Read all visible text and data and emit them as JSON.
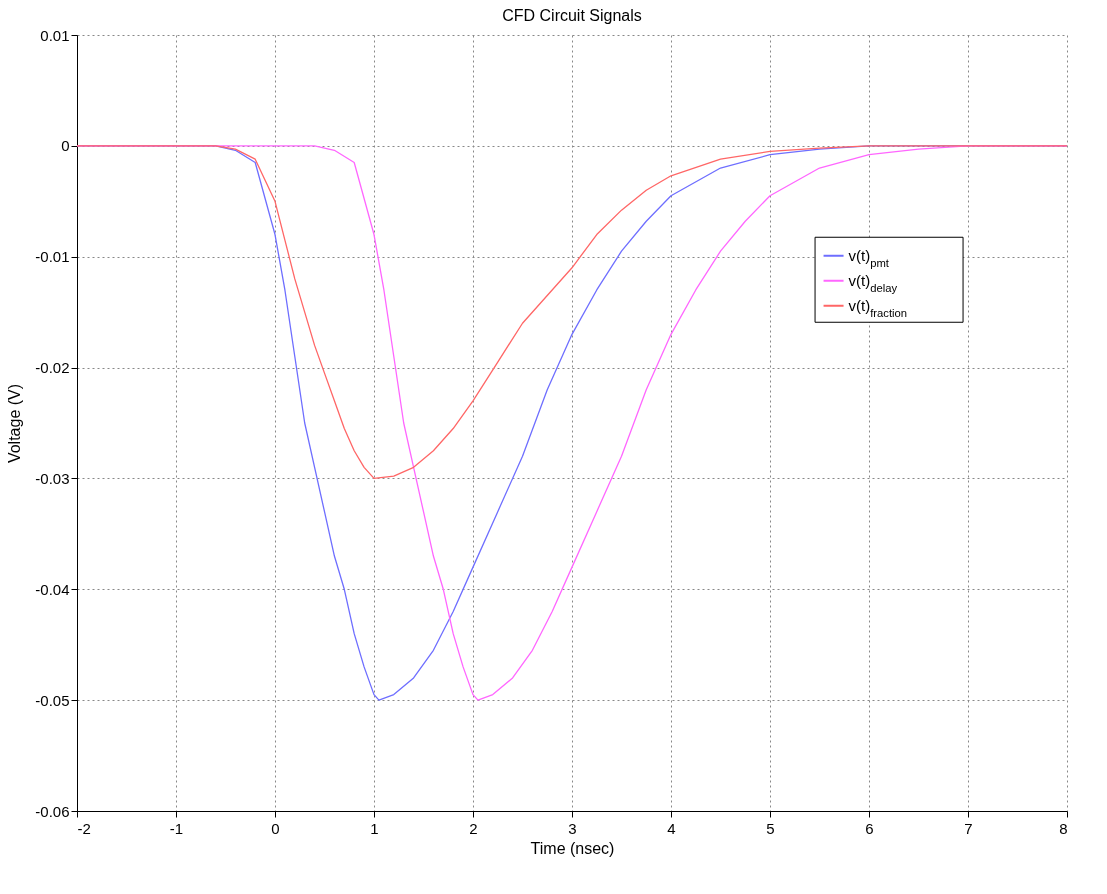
{
  "chart_data": {
    "type": "line",
    "title": "CFD Circuit Signals",
    "xlabel": "Time (nsec)",
    "ylabel": "Voltage (V)",
    "series": [
      {
        "name": "v(t)$_{pmt}$",
        "color": "#6e6eff",
        "x": [
          -2,
          -1,
          -0.6,
          -0.4,
          -0.2,
          0,
          0.1,
          0.2,
          0.3,
          0.4,
          0.5,
          0.6,
          0.7,
          0.8,
          0.9,
          1.0,
          1.05,
          1.2,
          1.4,
          1.6,
          1.8,
          2.0,
          2.25,
          2.5,
          2.75,
          3,
          3.25,
          3.5,
          3.75,
          4,
          4.5,
          5,
          5.5,
          6,
          8
        ],
        "values": [
          0,
          0,
          0,
          -0.0004,
          -0.0015,
          -0.008,
          -0.013,
          -0.019,
          -0.025,
          -0.029,
          -0.033,
          -0.037,
          -0.04,
          -0.044,
          -0.047,
          -0.0495,
          -0.05,
          -0.0495,
          -0.048,
          -0.0455,
          -0.042,
          -0.038,
          -0.033,
          -0.028,
          -0.022,
          -0.017,
          -0.013,
          -0.0095,
          -0.0068,
          -0.0045,
          -0.002,
          -0.0008,
          -0.0003,
          0,
          0
        ]
      },
      {
        "name": "v(t)$_{delay}$",
        "color": "#ff66ff",
        "x": [
          -2,
          -1,
          0,
          0.4,
          0.6,
          0.8,
          1.0,
          1.1,
          1.2,
          1.3,
          1.4,
          1.5,
          1.6,
          1.7,
          1.8,
          1.9,
          2.0,
          2.05,
          2.2,
          2.4,
          2.6,
          2.8,
          3.0,
          3.25,
          3.5,
          3.75,
          4,
          4.25,
          4.5,
          4.75,
          5,
          5.5,
          6,
          6.5,
          7,
          8
        ],
        "values": [
          0,
          0,
          0,
          0,
          -0.0004,
          -0.0015,
          -0.008,
          -0.013,
          -0.019,
          -0.025,
          -0.029,
          -0.033,
          -0.037,
          -0.04,
          -0.044,
          -0.047,
          -0.0495,
          -0.05,
          -0.0495,
          -0.048,
          -0.0455,
          -0.042,
          -0.038,
          -0.033,
          -0.028,
          -0.022,
          -0.017,
          -0.013,
          -0.0095,
          -0.0068,
          -0.0045,
          -0.002,
          -0.0008,
          -0.0003,
          0,
          0
        ]
      },
      {
        "name": "v(t)$_{fraction}$",
        "color": "#ff6666",
        "x": [
          -2,
          -1,
          -0.6,
          -0.4,
          -0.2,
          0,
          0.1,
          0.2,
          0.3,
          0.4,
          0.5,
          0.6,
          0.7,
          0.8,
          0.9,
          1.0,
          1.2,
          1.4,
          1.6,
          1.8,
          2.0,
          2.25,
          2.5,
          2.75,
          3,
          3.25,
          3.5,
          3.75,
          4,
          4.5,
          5,
          5.5,
          6,
          8
        ],
        "values": [
          0,
          0,
          0,
          -0.0003,
          -0.0012,
          -0.005,
          -0.0085,
          -0.012,
          -0.015,
          -0.018,
          -0.0205,
          -0.023,
          -0.0255,
          -0.0275,
          -0.029,
          -0.03,
          -0.0298,
          -0.029,
          -0.0275,
          -0.0255,
          -0.023,
          -0.0195,
          -0.016,
          -0.0135,
          -0.011,
          -0.008,
          -0.0058,
          -0.004,
          -0.0027,
          -0.0012,
          -0.0005,
          -0.0002,
          0,
          0
        ]
      }
    ],
    "xlim": [
      -2,
      8
    ],
    "xticks": [
      -2,
      -1,
      0,
      1,
      2,
      3,
      4,
      5,
      6,
      7,
      8
    ],
    "ylim": [
      -0.06,
      0.01
    ],
    "yticks": [
      -0.06,
      -0.05,
      -0.04,
      -0.03,
      -0.02,
      -0.01,
      0,
      0.01
    ],
    "grid": true,
    "legend": "right",
    "line_style": "solid"
  }
}
